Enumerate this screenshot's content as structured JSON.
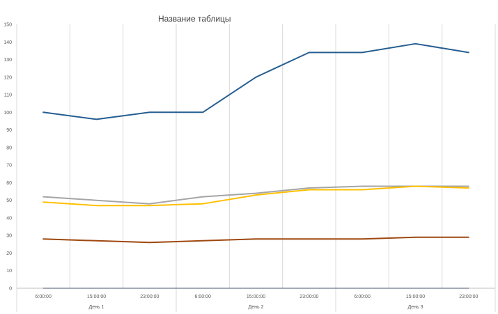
{
  "chart_data": {
    "type": "line",
    "title": "Название таблицы",
    "xlabel": "",
    "ylabel": "",
    "ylim": [
      0,
      150
    ],
    "yticks": [
      0,
      10,
      20,
      30,
      40,
      50,
      60,
      70,
      80,
      90,
      100,
      110,
      120,
      130,
      140,
      150
    ],
    "grid": "vertical",
    "legend": "none",
    "categories": [
      "6:00:00",
      "15:00:00",
      "23:00:00",
      "6:00:00",
      "15:00:00",
      "23:00:00",
      "6:00:00",
      "15:00:00",
      "23:00:00"
    ],
    "groups": [
      {
        "label": "День 1",
        "size": 3
      },
      {
        "label": "День 2",
        "size": 3
      },
      {
        "label": "День 3",
        "size": 3
      }
    ],
    "series": [
      {
        "color": "#255E91",
        "values": [
          100,
          96,
          100,
          100,
          120,
          134,
          134,
          139,
          134
        ]
      },
      {
        "color": "#A5A5A5",
        "values": [
          52,
          50,
          48,
          52,
          54,
          57,
          58,
          58,
          58
        ]
      },
      {
        "color": "#FFC000",
        "values": [
          49,
          47,
          47,
          48,
          53,
          56,
          56,
          58,
          57
        ]
      },
      {
        "color": "#9E480E",
        "values": [
          28,
          27,
          26,
          27,
          28,
          28,
          28,
          29,
          29
        ]
      },
      {
        "color": "#44546A",
        "values": [
          0,
          0,
          0,
          0,
          0,
          0,
          0,
          0,
          0
        ]
      }
    ]
  }
}
